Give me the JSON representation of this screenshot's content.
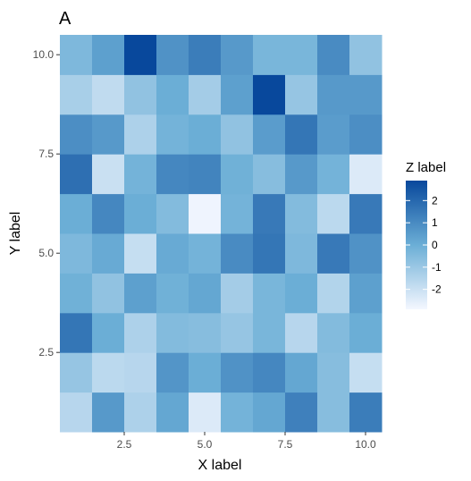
{
  "chart_data": {
    "type": "heatmap",
    "tag": "A",
    "xlabel": "X label",
    "ylabel": "Y label",
    "x": [
      1,
      2,
      3,
      4,
      5,
      6,
      7,
      8,
      9,
      10
    ],
    "y": [
      1,
      2,
      3,
      4,
      5,
      6,
      7,
      8,
      9,
      10
    ],
    "xlim": [
      0.5,
      10.5
    ],
    "ylim": [
      0.5,
      10.5
    ],
    "x_ticks": [
      2.5,
      5.0,
      7.5,
      10.0
    ],
    "x_tick_labels": [
      "2.5",
      "5.0",
      "7.5",
      "10.0"
    ],
    "y_ticks": [
      2.5,
      5.0,
      7.5,
      10.0
    ],
    "y_tick_labels": [
      "2.5",
      "5.0",
      "7.5",
      "10.0"
    ],
    "z_rows_bottom_to_top": [
      [
        -1.6,
        0.6,
        -1.4,
        0.2,
        -2.4,
        -0.2,
        0.2,
        1.3,
        -0.6,
        1.4
      ],
      [
        -0.9,
        -1.7,
        -1.6,
        0.7,
        0.0,
        0.8,
        1.1,
        0.2,
        -0.6,
        -1.9
      ],
      [
        1.6,
        0.0,
        -1.4,
        -0.5,
        -0.6,
        -0.9,
        -0.3,
        -1.6,
        -0.5,
        0.0
      ],
      [
        -0.1,
        -0.8,
        0.4,
        -0.1,
        0.2,
        -1.2,
        -0.3,
        0.0,
        -1.5,
        0.4
      ],
      [
        -0.4,
        0.1,
        -1.9,
        0.1,
        -0.2,
        1.0,
        1.6,
        -0.4,
        1.5,
        0.8
      ],
      [
        0.0,
        1.1,
        0.0,
        -0.5,
        -2.8,
        -0.2,
        1.5,
        -0.5,
        -1.7,
        1.5
      ],
      [
        1.8,
        -2.0,
        -0.2,
        1.1,
        1.2,
        -0.1,
        -0.6,
        0.6,
        -0.2,
        -2.4
      ],
      [
        0.9,
        0.6,
        -1.4,
        -0.2,
        0.0,
        -0.8,
        0.5,
        1.6,
        0.5,
        0.9
      ],
      [
        -1.3,
        -1.8,
        -0.8,
        0.0,
        -1.2,
        0.4,
        2.9,
        -0.9,
        0.6,
        0.6
      ],
      [
        -0.4,
        0.4,
        2.9,
        0.8,
        1.4,
        0.6,
        -0.3,
        -0.3,
        1.0,
        -0.8
      ]
    ],
    "zlim": [
      -2.9,
      2.9
    ],
    "color_low": "#f4f7ff",
    "color_mid": "#6baed6",
    "color_high": "#08489c",
    "legend": {
      "title": "Z label",
      "breaks": [
        2,
        1,
        0,
        -1,
        -2
      ],
      "labels": [
        "2",
        "1",
        "0",
        "-1",
        "-2"
      ],
      "position": "right"
    },
    "grid": false
  }
}
